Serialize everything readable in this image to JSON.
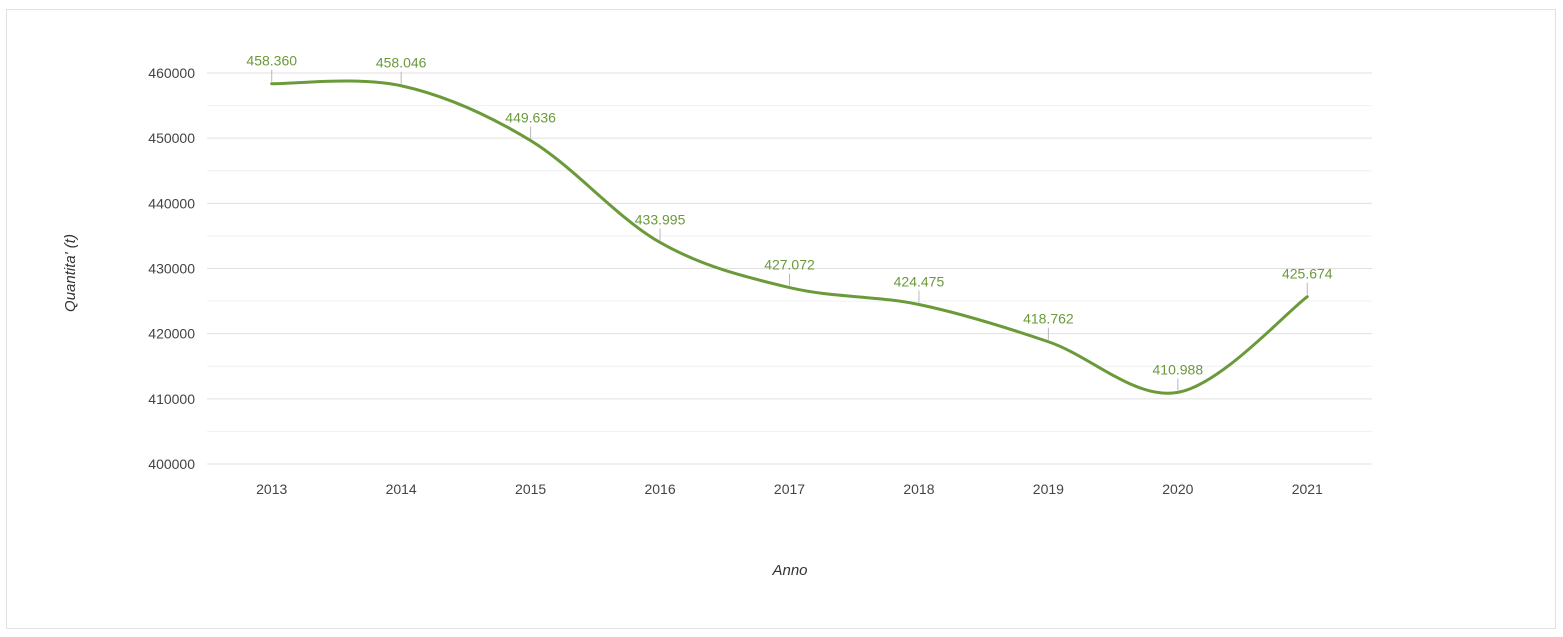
{
  "chart_data": {
    "type": "line",
    "categories": [
      "2013",
      "2014",
      "2015",
      "2016",
      "2017",
      "2018",
      "2019",
      "2020",
      "2021"
    ],
    "series": [
      {
        "values": [
          458360,
          458046,
          449636,
          433995,
          427072,
          424475,
          418762,
          410988,
          425674
        ],
        "labels": [
          "458.360",
          "458.046",
          "449.636",
          "433.995",
          "427.072",
          "424.475",
          "418.762",
          "410.988",
          "425.674"
        ],
        "color": "#6a9a3a"
      }
    ],
    "title": "",
    "xlabel": "Anno",
    "ylabel": "Quantita' (t)",
    "ylim": [
      400000,
      460000
    ],
    "yticks": [
      400000,
      410000,
      420000,
      430000,
      440000,
      450000,
      460000
    ],
    "ytick_labels": [
      "400000",
      "410000",
      "420000",
      "430000",
      "440000",
      "450000",
      "460000"
    ],
    "grid": true,
    "minor_grid": true,
    "legend": "none",
    "line_style": "smooth",
    "colors": {
      "line": "#6a9a3a",
      "label": "#6a9a3a",
      "grid": "#e6e6e6",
      "axis_text": "#444444"
    }
  }
}
